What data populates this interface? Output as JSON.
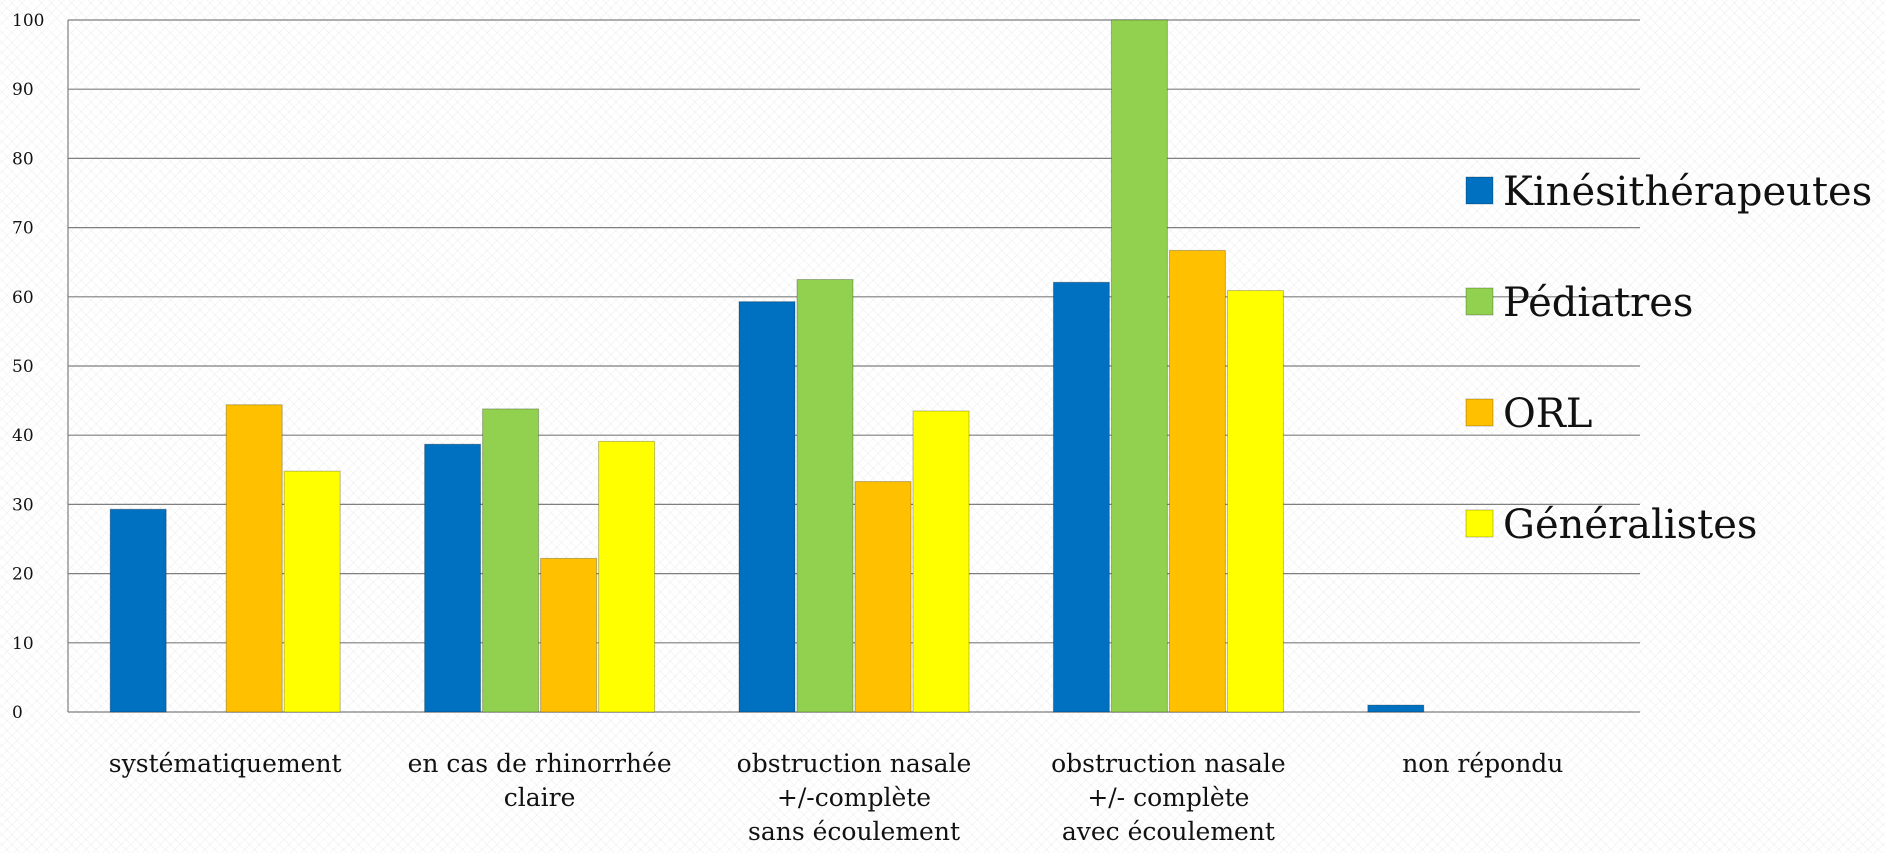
{
  "chart_data": {
    "type": "bar",
    "categories": [
      [
        "systématiquement"
      ],
      [
        "en cas de rhinorrhée",
        "claire"
      ],
      [
        "obstruction nasale",
        "+/-complète",
        "sans écoulement"
      ],
      [
        "obstruction nasale",
        "+/- complète",
        "avec écoulement"
      ],
      [
        "non répondu"
      ]
    ],
    "series": [
      {
        "name": "Kinésithérapeutes",
        "color": "#0070c0",
        "values": [
          29.3,
          38.7,
          59.3,
          62.1,
          1.0
        ]
      },
      {
        "name": "Pédiatres",
        "color": "#92d050",
        "values": [
          0,
          43.8,
          62.5,
          100,
          0
        ]
      },
      {
        "name": "ORL",
        "color": "#ffc000",
        "values": [
          44.4,
          22.2,
          33.3,
          66.7,
          0
        ]
      },
      {
        "name": "Généralistes",
        "color": "#ffff00",
        "values": [
          34.8,
          39.1,
          43.5,
          60.9,
          0
        ]
      }
    ],
    "yticks": [
      "0",
      "10",
      "20",
      "30",
      "40",
      "50",
      "60",
      "70",
      "80",
      "90",
      "100"
    ],
    "ylim": [
      0,
      100
    ],
    "title": "",
    "xlabel": "",
    "ylabel": "",
    "grid": true,
    "legend_position": "right"
  }
}
